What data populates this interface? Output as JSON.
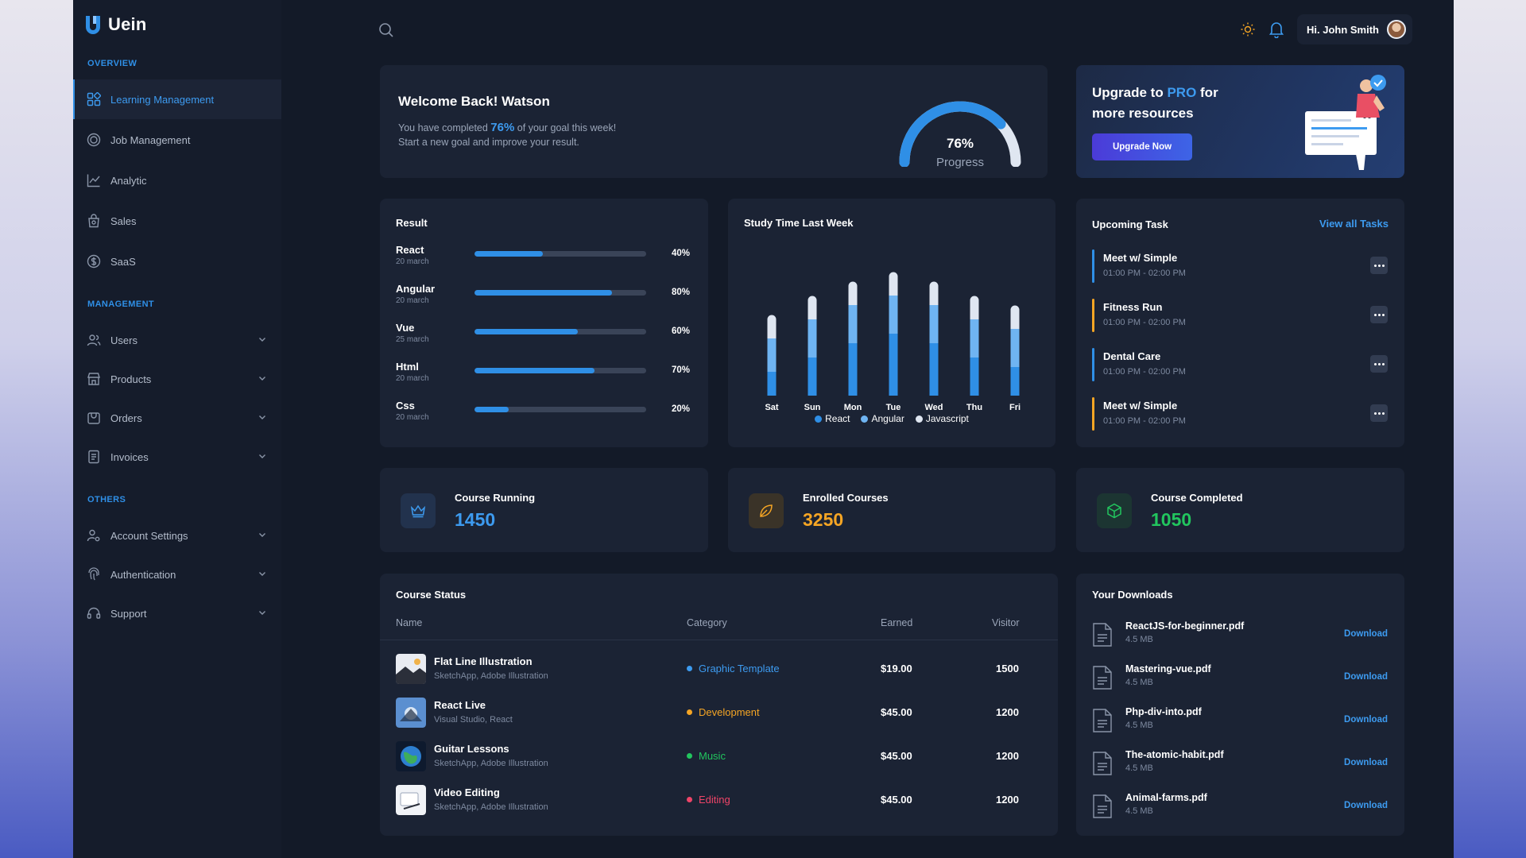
{
  "app": {
    "name": "Uein"
  },
  "topbar": {
    "greeting": "Hi. John Smith"
  },
  "sidebar": {
    "sections": [
      {
        "label": "OVERVIEW",
        "items": [
          {
            "label": "Learning Management",
            "icon": "dashboard-icon",
            "active": true
          },
          {
            "label": "Job Management",
            "icon": "target-icon"
          },
          {
            "label": "Analytic",
            "icon": "chart-icon"
          },
          {
            "label": "Sales",
            "icon": "bag-icon"
          },
          {
            "label": "SaaS",
            "icon": "dollar-icon"
          }
        ]
      },
      {
        "label": "MANAGEMENT",
        "items": [
          {
            "label": "Users",
            "icon": "users-icon"
          },
          {
            "label": "Products",
            "icon": "store-icon"
          },
          {
            "label": "Orders",
            "icon": "cart-icon"
          },
          {
            "label": "Invoices",
            "icon": "invoice-icon"
          }
        ]
      },
      {
        "label": "OTHERS",
        "items": [
          {
            "label": "Account Settings",
            "icon": "user-gear-icon"
          },
          {
            "label": "Authentication",
            "icon": "fingerprint-icon"
          },
          {
            "label": "Support",
            "icon": "headset-icon"
          }
        ]
      }
    ]
  },
  "welcome": {
    "title": "Welcome Back! Watson",
    "line1_pre": "You have completed ",
    "line1_pct": "76%",
    "line1_post": " of your goal this week!",
    "line2": "Start a new goal and improve your result.",
    "progress_value": 0.76,
    "progress_text": "76%",
    "progress_label": "Progress"
  },
  "upgrade": {
    "title_pre": "Upgrade to ",
    "title_pro": "PRO",
    "title_post": " for more resources",
    "button": "Upgrade Now"
  },
  "result": {
    "title": "Result",
    "rows": [
      {
        "name": "React",
        "date": "20 march",
        "pct": "40%",
        "value": 0.4
      },
      {
        "name": "Angular",
        "date": "20 march",
        "pct": "80%",
        "value": 0.8
      },
      {
        "name": "Vue",
        "date": "25 march",
        "pct": "60%",
        "value": 0.6
      },
      {
        "name": "Html",
        "date": "20 march",
        "pct": "70%",
        "value": 0.7
      },
      {
        "name": "Css",
        "date": "20 march",
        "pct": "20%",
        "value": 0.2
      }
    ]
  },
  "chart_data": {
    "type": "bar",
    "stacked": true,
    "title": "Study Time Last Week",
    "categories": [
      "Sat",
      "Sun",
      "Mon",
      "Tue",
      "Wed",
      "Thu",
      "Fri"
    ],
    "series": [
      {
        "name": "React",
        "color": "#2f8fe6",
        "values": [
          25,
          40,
          55,
          65,
          55,
          40,
          30
        ]
      },
      {
        "name": "Angular",
        "color": "#6fb4f2",
        "values": [
          35,
          40,
          40,
          40,
          40,
          40,
          40
        ]
      },
      {
        "name": "Javascript",
        "color": "#dfe6f1",
        "values": [
          20,
          20,
          20,
          20,
          20,
          20,
          20
        ]
      }
    ],
    "ylim": [
      0,
      125
    ],
    "legend": "bottom"
  },
  "tasks": {
    "title": "Upcoming Task",
    "view_all": "View all Tasks",
    "items": [
      {
        "title": "Meet w/ Simple",
        "time": "01:00 PM - 02:00 PM",
        "color": "#2f8fe6"
      },
      {
        "title": "Fitness Run",
        "time": "01:00 PM - 02:00 PM",
        "color": "#f5a524"
      },
      {
        "title": "Dental Care",
        "time": "01:00 PM - 02:00 PM",
        "color": "#2f8fe6"
      },
      {
        "title": "Meet w/ Simple",
        "time": "01:00 PM - 02:00 PM",
        "color": "#f5a524"
      }
    ]
  },
  "stats": [
    {
      "label": "Course Running",
      "value": "1450",
      "color": "#3d9bf0",
      "icon": "crown-icon"
    },
    {
      "label": "Enrolled Courses",
      "value": "3250",
      "color": "#f5a524",
      "icon": "leaf-icon"
    },
    {
      "label": "Course Completed",
      "value": "1050",
      "color": "#22c55e",
      "icon": "box-icon"
    }
  ],
  "course_status": {
    "title": "Course Status",
    "headers": {
      "name": "Name",
      "category": "Category",
      "earned": "Earned",
      "visitor": "Visitor"
    },
    "rows": [
      {
        "name": "Flat Line Illustration",
        "sub": "SketchApp, Adobe Illustration",
        "category": "Graphic Template",
        "cat_color": "#3d9bf0",
        "earned": "$19.00",
        "visitor": "1500"
      },
      {
        "name": "React Live",
        "sub": "Visual Studio, React",
        "category": "Development",
        "cat_color": "#f5a524",
        "earned": "$45.00",
        "visitor": "1200"
      },
      {
        "name": "Guitar Lessons",
        "sub": "SketchApp, Adobe Illustration",
        "category": "Music",
        "cat_color": "#22c55e",
        "earned": "$45.00",
        "visitor": "1200"
      },
      {
        "name": "Video Editing",
        "sub": "SketchApp, Adobe Illustration",
        "category": "Editing",
        "cat_color": "#ef4468",
        "earned": "$45.00",
        "visitor": "1200"
      }
    ]
  },
  "downloads": {
    "title": "Your Downloads",
    "items": [
      {
        "name": "ReactJS-for-beginner.pdf",
        "size": "4.5 MB",
        "action": "Download"
      },
      {
        "name": "Mastering-vue.pdf",
        "size": "4.5 MB",
        "action": "Download"
      },
      {
        "name": "Php-div-into.pdf",
        "size": "4.5 MB",
        "action": "Download"
      },
      {
        "name": "The-atomic-habit.pdf",
        "size": "4.5 MB",
        "action": "Download"
      },
      {
        "name": "Animal-farms.pdf",
        "size": "4.5 MB",
        "action": "Download"
      }
    ]
  }
}
